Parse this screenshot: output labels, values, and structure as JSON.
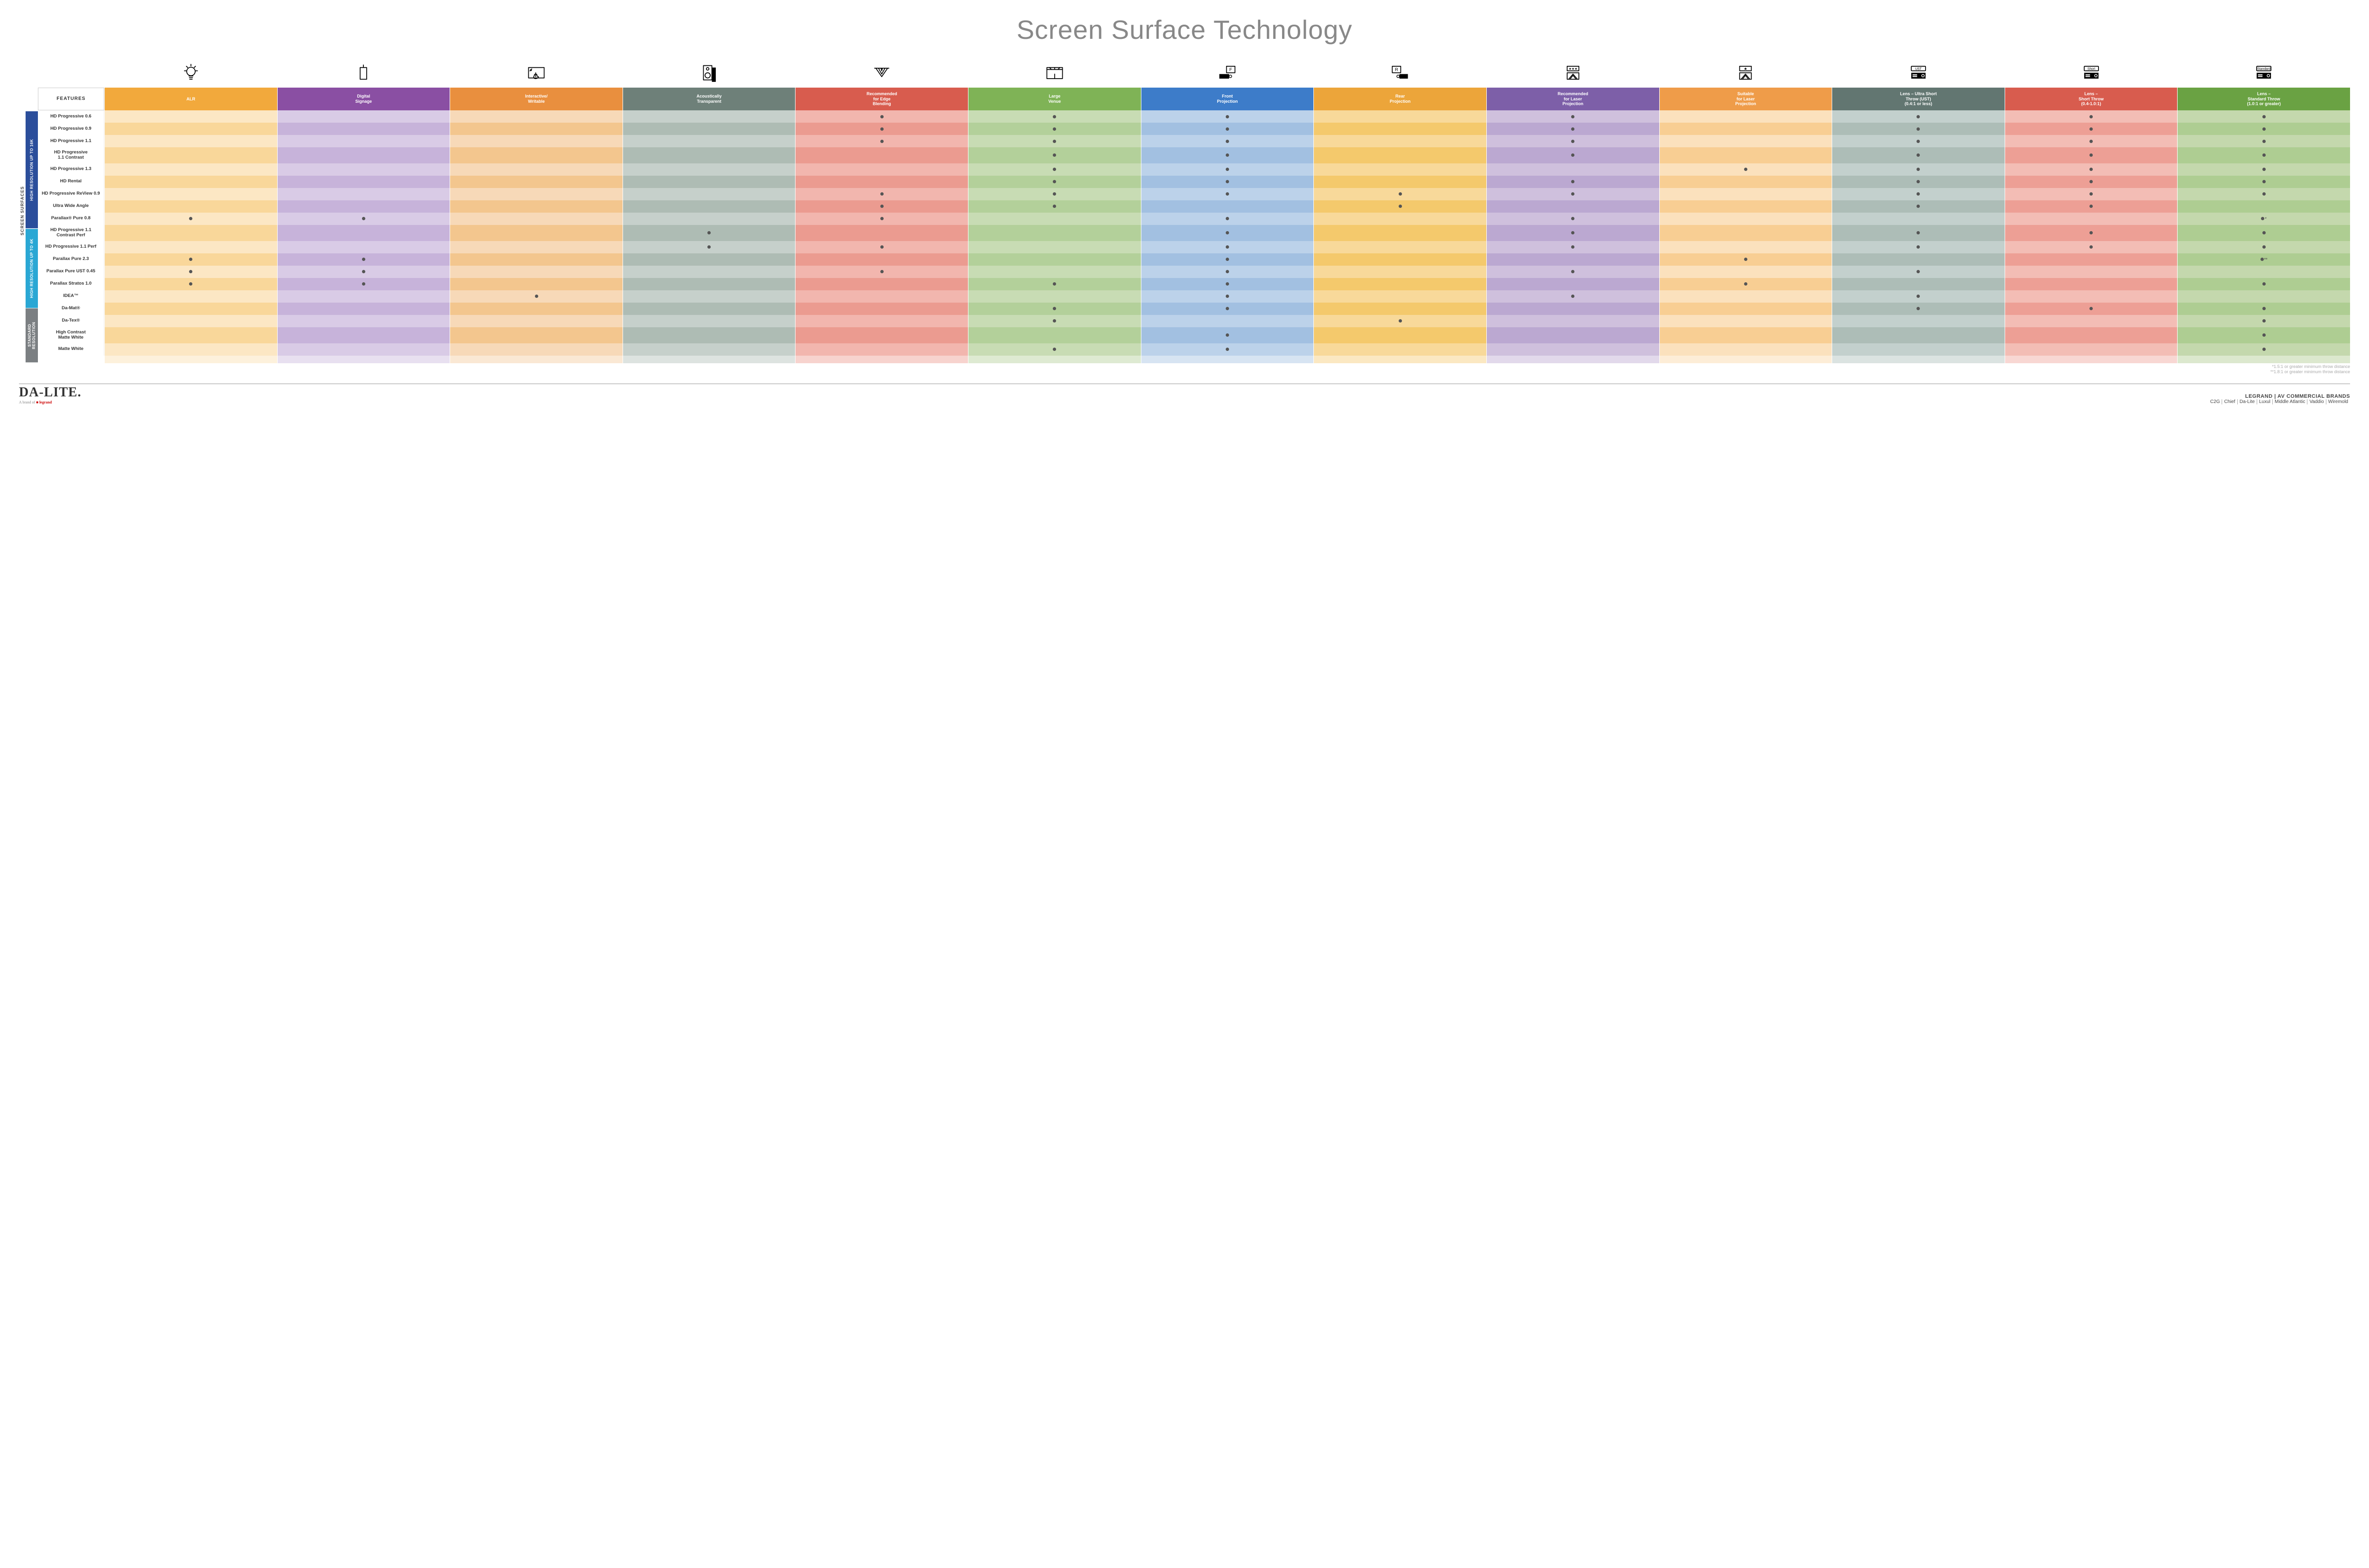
{
  "title": "Screen Surface Technology",
  "features_label": "FEATURES",
  "side_outer_label": "SCREEN SURFACES",
  "palette": {
    "light": [
      "#fce7c4",
      "#d9cbe6",
      "#f7d9b8",
      "#c6d0cb",
      "#f2b6ae",
      "#c8dcb4",
      "#bcd2ea",
      "#f8d99a",
      "#cfc0dd",
      "#fbe1bd",
      "#c3d0cd",
      "#f3bdb5",
      "#c4d8ad"
    ],
    "mid": [
      "#f9d79a",
      "#c7b3da",
      "#f3c68e",
      "#aebcb4",
      "#eb9b90",
      "#b3d09a",
      "#a2c0e1",
      "#f4c96c",
      "#bba8d1",
      "#f8ce93",
      "#adbdb7",
      "#ed9f95",
      "#aecd92"
    ]
  },
  "columns": [
    {
      "key": "alr",
      "label": "ALR",
      "color": "#f2a93c",
      "icon": "bulb"
    },
    {
      "key": "signage",
      "label": "Digital\nSignage",
      "color": "#8a4fa3",
      "icon": "signage"
    },
    {
      "key": "interactive",
      "label": "Interactive/\nWritable",
      "color": "#e98f3e",
      "icon": "touch"
    },
    {
      "key": "acoustic",
      "label": "Acoustically\nTransparent",
      "color": "#6e8079",
      "icon": "speaker"
    },
    {
      "key": "edge",
      "label": "Recommended\nfor Edge\nBlending",
      "color": "#d85c4e",
      "icon": "edge"
    },
    {
      "key": "large",
      "label": "Large\nVenue",
      "color": "#7fb356",
      "icon": "venue"
    },
    {
      "key": "front",
      "label": "Front\nProjection",
      "color": "#3d7cc9",
      "icon": "front"
    },
    {
      "key": "rear",
      "label": "Rear\nProjection",
      "color": "#eca53a",
      "icon": "rear"
    },
    {
      "key": "reclaser",
      "label": "Recommended\nfor Laser\nProjection",
      "color": "#7d5fa8",
      "icon": "laser3"
    },
    {
      "key": "suitlaser",
      "label": "Suitable\nfor Laser\nProjection",
      "color": "#ef9c49",
      "icon": "laser1"
    },
    {
      "key": "ust",
      "label": "Lens – Ultra Short\nThrow (UST)\n(0.4:1 or less)",
      "color": "#627671",
      "icon": "proj",
      "icon_label": "UST"
    },
    {
      "key": "short",
      "label": "Lens –\nShort Throw\n(0.4-1.0:1)",
      "color": "#d85c4e",
      "icon": "proj",
      "icon_label": "Short"
    },
    {
      "key": "std",
      "label": "Lens –\nStandard Throw\n(1.0:1 or greater)",
      "color": "#6aa243",
      "icon": "proj",
      "icon_label": "Standard"
    }
  ],
  "groups": [
    {
      "label": "HIGH RESOLUTION UP TO 16K",
      "color": "#2b4e9b",
      "rows": [
        {
          "label": "HD Progressive 0.6",
          "dots": {
            "edge": 1,
            "large": 1,
            "front": 1,
            "reclaser": 1,
            "ust": 1,
            "short": 1,
            "std": 1
          }
        },
        {
          "label": "HD Progressive 0.9",
          "dots": {
            "edge": 1,
            "large": 1,
            "front": 1,
            "reclaser": 1,
            "ust": 1,
            "short": 1,
            "std": 1
          }
        },
        {
          "label": "HD Progressive 1.1",
          "dots": {
            "edge": 1,
            "large": 1,
            "front": 1,
            "reclaser": 1,
            "ust": 1,
            "short": 1,
            "std": 1
          }
        },
        {
          "label": "HD Progressive\n1.1 Contrast",
          "dots": {
            "large": 1,
            "front": 1,
            "reclaser": 1,
            "ust": 1,
            "short": 1,
            "std": 1
          }
        },
        {
          "label": "HD Progressive 1.3",
          "dots": {
            "large": 1,
            "front": 1,
            "suitlaser": 1,
            "ust": 1,
            "short": 1,
            "std": 1
          }
        },
        {
          "label": "HD Rental",
          "dots": {
            "large": 1,
            "front": 1,
            "reclaser": 1,
            "ust": 1,
            "short": 1,
            "std": 1
          }
        },
        {
          "label": "HD Progressive ReView 0.9",
          "dots": {
            "edge": 1,
            "large": 1,
            "front": 1,
            "rear": 1,
            "reclaser": 1,
            "ust": 1,
            "short": 1,
            "std": 1
          }
        },
        {
          "label": "Ultra Wide Angle",
          "dots": {
            "edge": 1,
            "large": 1,
            "rear": 1,
            "ust": 1,
            "short": 1
          }
        },
        {
          "label": "Parallax® Pure 0.8",
          "dots": {
            "alr": 1,
            "signage": 1,
            "edge": 1,
            "front": 1,
            "reclaser": 1,
            "std": "*"
          }
        }
      ]
    },
    {
      "label": "HIGH RESOLUTION UP TO 4K",
      "color": "#2aa7d4",
      "rows": [
        {
          "label": "HD Progressive 1.1\nContrast Perf",
          "dots": {
            "acoustic": 1,
            "front": 1,
            "reclaser": 1,
            "ust": 1,
            "short": 1,
            "std": 1
          }
        },
        {
          "label": "HD Progressive 1.1 Perf",
          "dots": {
            "acoustic": 1,
            "edge": 1,
            "front": 1,
            "reclaser": 1,
            "ust": 1,
            "short": 1,
            "std": 1
          }
        },
        {
          "label": "Parallax Pure 2.3",
          "dots": {
            "alr": 1,
            "signage": 1,
            "front": 1,
            "suitlaser": 1,
            "std": "**"
          }
        },
        {
          "label": "Parallax Pure UST 0.45",
          "dots": {
            "alr": 1,
            "signage": 1,
            "edge": 1,
            "front": 1,
            "reclaser": 1,
            "ust": 1
          }
        },
        {
          "label": "Parallax Stratos 1.0",
          "dots": {
            "alr": 1,
            "signage": 1,
            "large": 1,
            "front": 1,
            "suitlaser": 1,
            "std": 1
          }
        },
        {
          "label": "IDEA™",
          "dots": {
            "interactive": 1,
            "front": 1,
            "reclaser": 1,
            "ust": 1
          }
        }
      ]
    },
    {
      "label": "STANDARD\nRESOLUTION",
      "color": "#7b7f82",
      "rows": [
        {
          "label": "Da-Mat®",
          "dots": {
            "large": 1,
            "front": 1,
            "ust": 1,
            "short": 1,
            "std": 1
          }
        },
        {
          "label": "Da-Tex®",
          "dots": {
            "large": 1,
            "rear": 1,
            "std": 1
          }
        },
        {
          "label": "High Contrast\nMatte White",
          "dots": {
            "front": 1,
            "std": 1
          }
        },
        {
          "label": "Matte White",
          "dots": {
            "large": 1,
            "front": 1,
            "std": 1
          }
        }
      ]
    }
  ],
  "footnotes": [
    "*1.5:1 or greater minimum throw distance",
    "**1.8:1 or greater minimum throw distance"
  ],
  "footer": {
    "logo_main": "DA-LITE.",
    "logo_sub_a": "A brand of ",
    "logo_sub_b": "legrand",
    "right_top": "LEGRAND | AV COMMERCIAL BRANDS",
    "brands": [
      "C2G",
      "Chief",
      "Da-Lite",
      "Luxul",
      "Middle Atlantic",
      "Vaddio",
      "Wiremold"
    ]
  }
}
